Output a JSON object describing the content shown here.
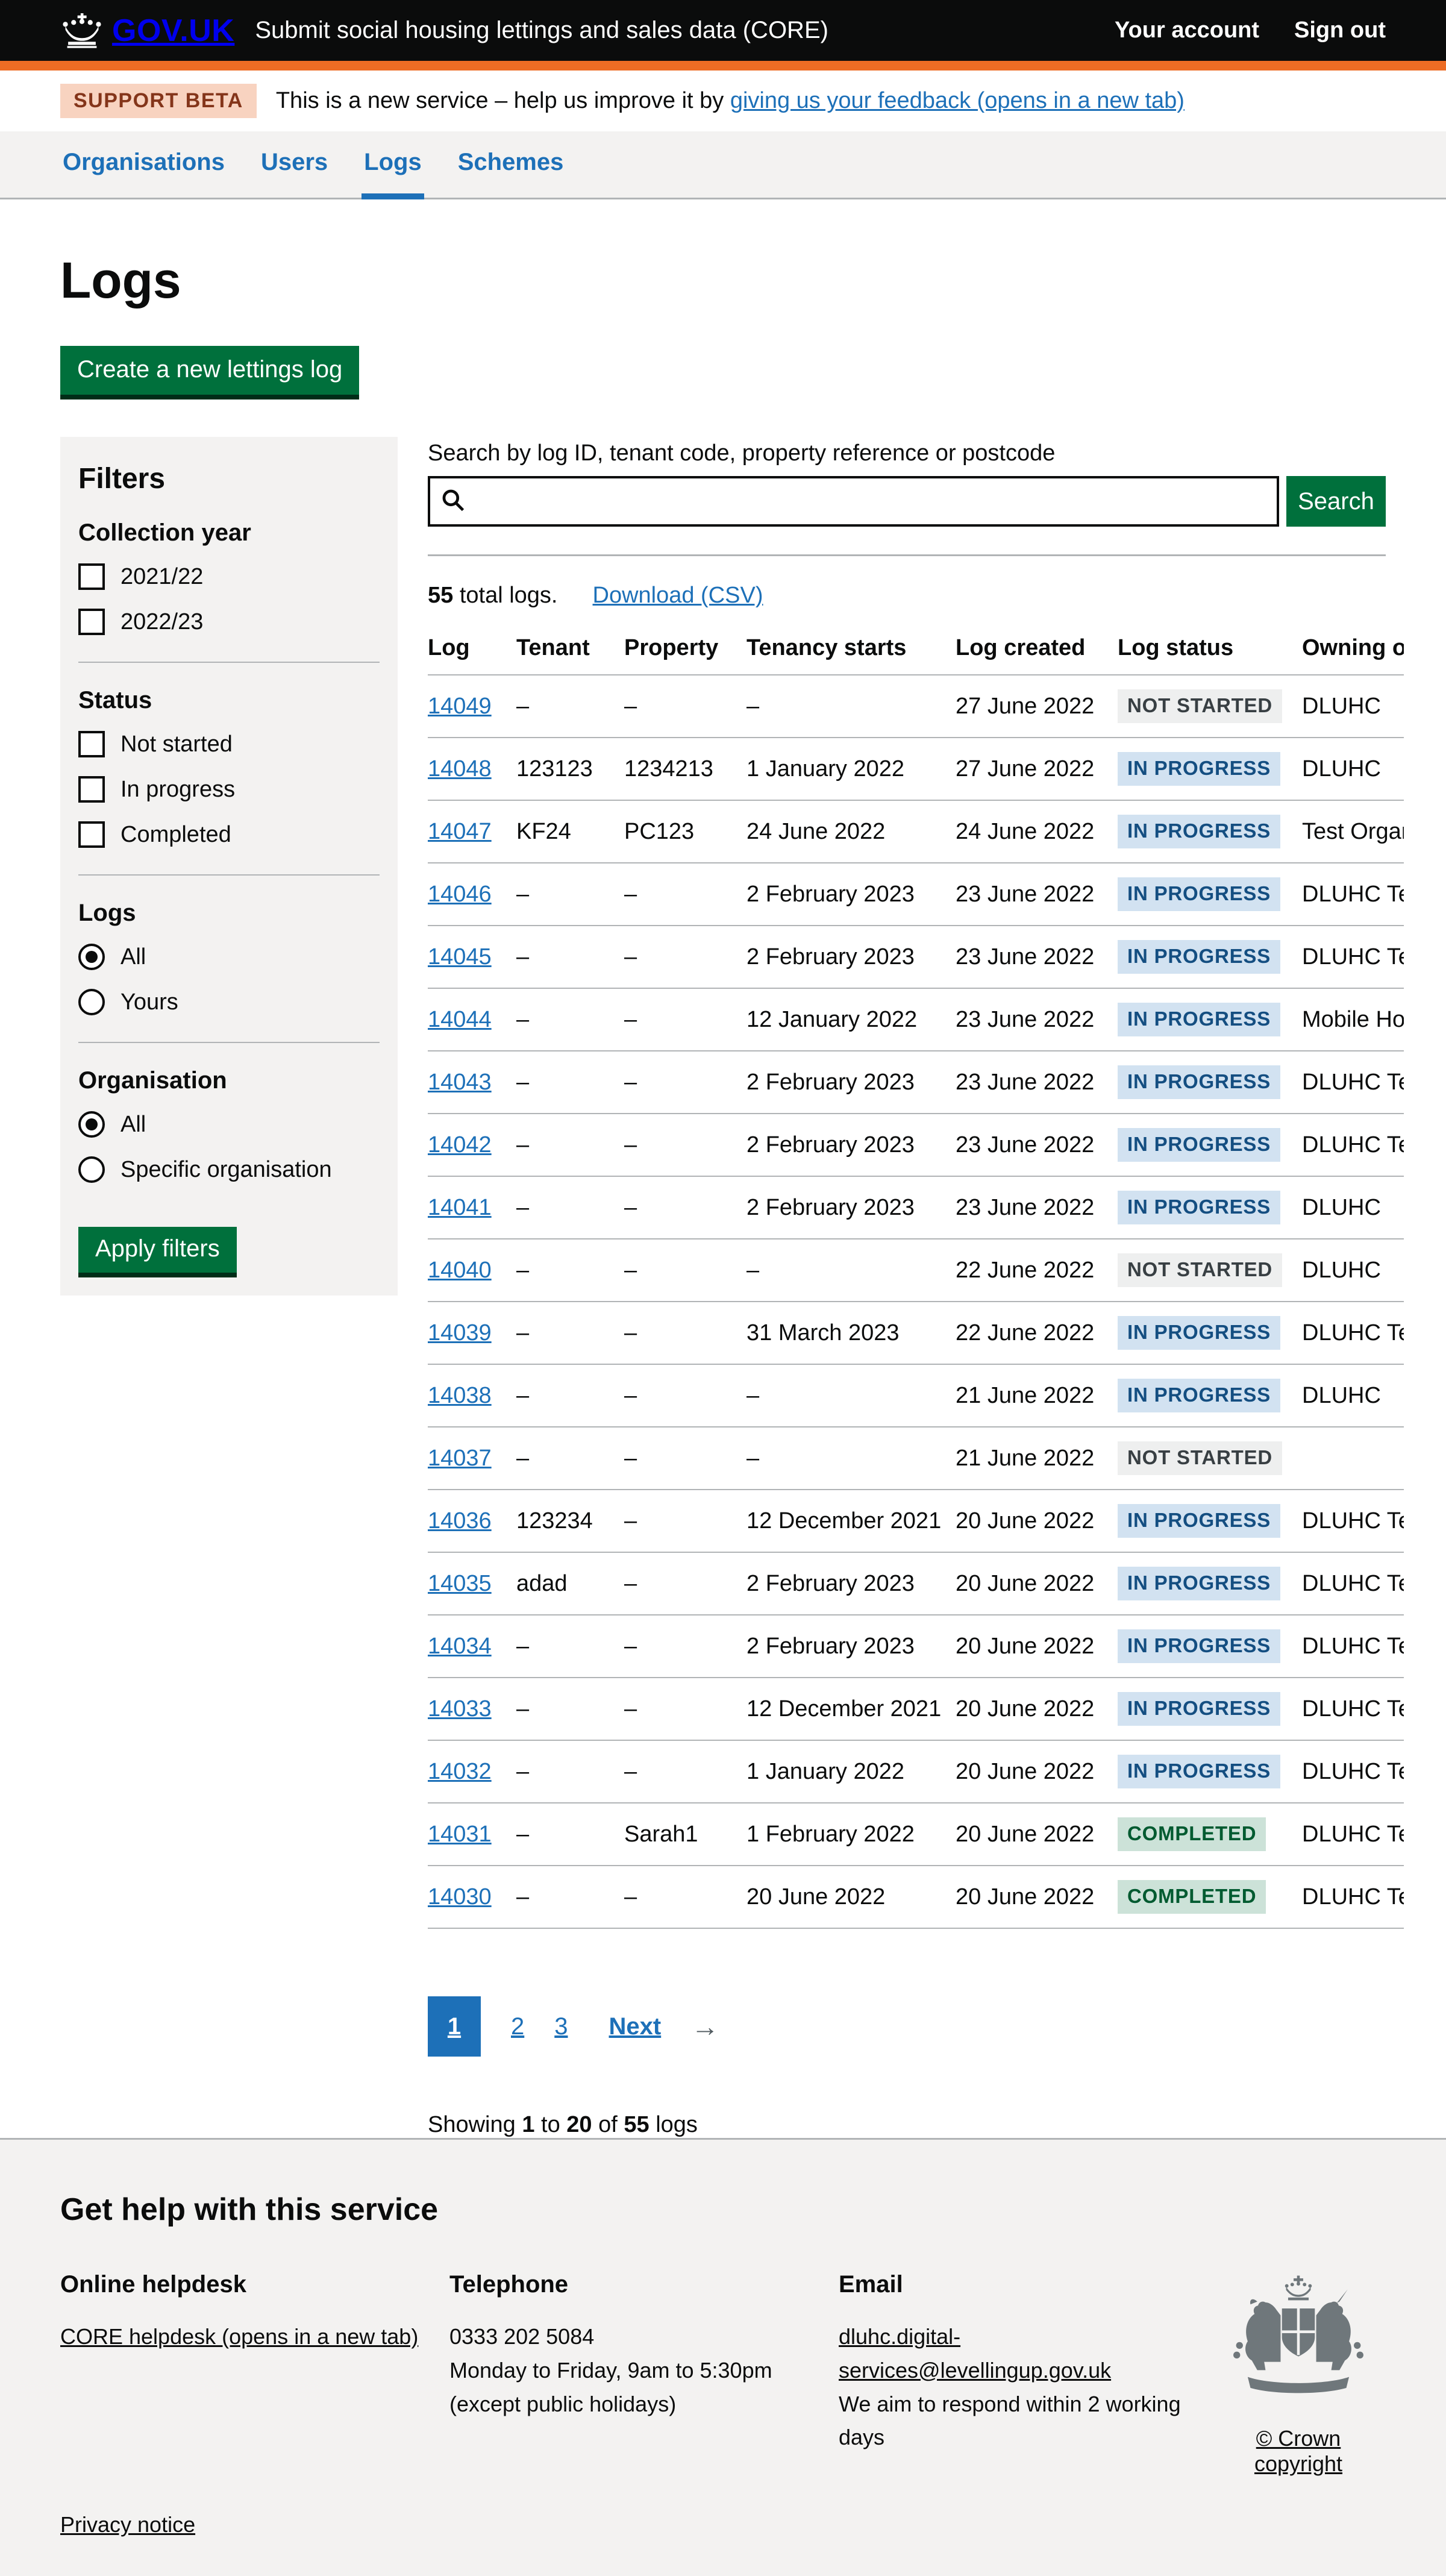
{
  "colors": {
    "accent_orange": "#ed6c24",
    "brand_black": "#0b0c0c",
    "link_blue": "#1d70b8",
    "button_green": "#00703c",
    "tag_blue_bg": "#d2e2f1",
    "tag_blue_fg": "#144e81",
    "tag_grey_bg": "#eeefef",
    "tag_grey_fg": "#383f43",
    "tag_green_bg": "#cce2d8",
    "tag_green_fg": "#005a30",
    "panel_grey": "#f3f2f1"
  },
  "header": {
    "logo": "GOV.UK",
    "service_name": "Submit social housing lettings and sales data (CORE)",
    "account_link": "Your account",
    "signout_link": "Sign out"
  },
  "phase_banner": {
    "tag": "SUPPORT BETA",
    "text_before_link": "This is a new service – help us improve it by ",
    "link_text": "giving us your feedback (opens in a new tab)"
  },
  "nav": {
    "items": [
      {
        "label": "Organisations",
        "active": false
      },
      {
        "label": "Users",
        "active": false
      },
      {
        "label": "Logs",
        "active": true
      },
      {
        "label": "Schemes",
        "active": false
      }
    ]
  },
  "page": {
    "title": "Logs",
    "create_button": "Create a new lettings log"
  },
  "filters": {
    "title": "Filters",
    "apply_button": "Apply filters",
    "groups": [
      {
        "title": "Collection year",
        "type": "checkbox",
        "options": [
          {
            "label": "2021/22",
            "checked": false
          },
          {
            "label": "2022/23",
            "checked": false
          }
        ]
      },
      {
        "title": "Status",
        "type": "checkbox",
        "options": [
          {
            "label": "Not started",
            "checked": false
          },
          {
            "label": "In progress",
            "checked": false
          },
          {
            "label": "Completed",
            "checked": false
          }
        ]
      },
      {
        "title": "Logs",
        "type": "radio",
        "options": [
          {
            "label": "All",
            "checked": true
          },
          {
            "label": "Yours",
            "checked": false
          }
        ]
      },
      {
        "title": "Organisation",
        "type": "radio",
        "options": [
          {
            "label": "All",
            "checked": true
          },
          {
            "label": "Specific organisation",
            "checked": false
          }
        ]
      }
    ]
  },
  "search": {
    "label": "Search by log ID, tenant code, property reference or postcode",
    "value": "",
    "button": "Search"
  },
  "results_summary": {
    "count": "55",
    "count_text": " total logs.",
    "download_link": "Download (CSV)"
  },
  "table": {
    "headers": [
      "Log",
      "Tenant",
      "Property",
      "Tenancy starts",
      "Log created",
      "Log status",
      "Owning organisation"
    ],
    "rows": [
      {
        "log": "14049",
        "tenant": "–",
        "property": "–",
        "tenancy_starts": "–",
        "log_created": "27 June 2022",
        "status": "NOT STARTED",
        "status_color": "grey",
        "owning": "DLUHC"
      },
      {
        "log": "14048",
        "tenant": "123123",
        "property": "1234213",
        "tenancy_starts": "1 January 2022",
        "log_created": "27 June 2022",
        "status": "IN PROGRESS",
        "status_color": "blue",
        "owning": "DLUHC"
      },
      {
        "log": "14047",
        "tenant": "KF24",
        "property": "PC123",
        "tenancy_starts": "24 June 2022",
        "log_created": "24 June 2022",
        "status": "IN PROGRESS",
        "status_color": "blue",
        "owning": "Test Organi"
      },
      {
        "log": "14046",
        "tenant": "–",
        "property": "–",
        "tenancy_starts": "2 February 2023",
        "log_created": "23 June 2022",
        "status": "IN PROGRESS",
        "status_color": "blue",
        "owning": "DLUHC Tes"
      },
      {
        "log": "14045",
        "tenant": "–",
        "property": "–",
        "tenancy_starts": "2 February 2023",
        "log_created": "23 June 2022",
        "status": "IN PROGRESS",
        "status_color": "blue",
        "owning": "DLUHC Tes"
      },
      {
        "log": "14044",
        "tenant": "–",
        "property": "–",
        "tenancy_starts": "12 January 2022",
        "log_created": "23 June 2022",
        "status": "IN PROGRESS",
        "status_color": "blue",
        "owning": "Mobile Hou"
      },
      {
        "log": "14043",
        "tenant": "–",
        "property": "–",
        "tenancy_starts": "2 February 2023",
        "log_created": "23 June 2022",
        "status": "IN PROGRESS",
        "status_color": "blue",
        "owning": "DLUHC Tes"
      },
      {
        "log": "14042",
        "tenant": "–",
        "property": "–",
        "tenancy_starts": "2 February 2023",
        "log_created": "23 June 2022",
        "status": "IN PROGRESS",
        "status_color": "blue",
        "owning": "DLUHC Tes"
      },
      {
        "log": "14041",
        "tenant": "–",
        "property": "–",
        "tenancy_starts": "2 February 2023",
        "log_created": "23 June 2022",
        "status": "IN PROGRESS",
        "status_color": "blue",
        "owning": "DLUHC"
      },
      {
        "log": "14040",
        "tenant": "–",
        "property": "–",
        "tenancy_starts": "–",
        "log_created": "22 June 2022",
        "status": "NOT STARTED",
        "status_color": "grey",
        "owning": "DLUHC"
      },
      {
        "log": "14039",
        "tenant": "–",
        "property": "–",
        "tenancy_starts": "31 March 2023",
        "log_created": "22 June 2022",
        "status": "IN PROGRESS",
        "status_color": "blue",
        "owning": "DLUHC Tes"
      },
      {
        "log": "14038",
        "tenant": "–",
        "property": "–",
        "tenancy_starts": "–",
        "log_created": "21 June 2022",
        "status": "IN PROGRESS",
        "status_color": "blue",
        "owning": "DLUHC"
      },
      {
        "log": "14037",
        "tenant": "–",
        "property": "–",
        "tenancy_starts": "–",
        "log_created": "21 June 2022",
        "status": "NOT STARTED",
        "status_color": "grey",
        "owning": ""
      },
      {
        "log": "14036",
        "tenant": "123234",
        "property": "–",
        "tenancy_starts": "12 December 2021",
        "log_created": "20 June 2022",
        "status": "IN PROGRESS",
        "status_color": "blue",
        "owning": "DLUHC Tes"
      },
      {
        "log": "14035",
        "tenant": "adad",
        "property": "–",
        "tenancy_starts": "2 February 2023",
        "log_created": "20 June 2022",
        "status": "IN PROGRESS",
        "status_color": "blue",
        "owning": "DLUHC Tes"
      },
      {
        "log": "14034",
        "tenant": "–",
        "property": "–",
        "tenancy_starts": "2 February 2023",
        "log_created": "20 June 2022",
        "status": "IN PROGRESS",
        "status_color": "blue",
        "owning": "DLUHC Tes"
      },
      {
        "log": "14033",
        "tenant": "–",
        "property": "–",
        "tenancy_starts": "12 December 2021",
        "log_created": "20 June 2022",
        "status": "IN PROGRESS",
        "status_color": "blue",
        "owning": "DLUHC Tes"
      },
      {
        "log": "14032",
        "tenant": "–",
        "property": "–",
        "tenancy_starts": "1 January 2022",
        "log_created": "20 June 2022",
        "status": "IN PROGRESS",
        "status_color": "blue",
        "owning": "DLUHC Tes"
      },
      {
        "log": "14031",
        "tenant": "–",
        "property": "Sarah1",
        "tenancy_starts": "1 February 2022",
        "log_created": "20 June 2022",
        "status": "COMPLETED",
        "status_color": "green",
        "owning": "DLUHC Tes"
      },
      {
        "log": "14030",
        "tenant": "–",
        "property": "–",
        "tenancy_starts": "20 June 2022",
        "log_created": "20 June 2022",
        "status": "COMPLETED",
        "status_color": "green",
        "owning": "DLUHC Tes"
      }
    ]
  },
  "pagination": {
    "current": "1",
    "pages": [
      "2",
      "3"
    ],
    "next_label": "Next",
    "next_arrow": "→"
  },
  "showing": {
    "prefix": "Showing ",
    "from": "1",
    "to_word": " to ",
    "to": "20",
    "of_word": " of ",
    "total": "55",
    "suffix": " logs"
  },
  "footer": {
    "title": "Get help with this service",
    "columns": [
      {
        "heading": "Online helpdesk",
        "items": [
          {
            "type": "link",
            "text": "CORE helpdesk (opens in a new tab)"
          }
        ]
      },
      {
        "heading": "Telephone",
        "items": [
          {
            "type": "text",
            "text": "0333 202 5084"
          },
          {
            "type": "text",
            "text": "Monday to Friday, 9am to 5:30pm"
          },
          {
            "type": "text",
            "text": "(except public holidays)"
          }
        ]
      },
      {
        "heading": "Email",
        "items": [
          {
            "type": "link",
            "text": "dluhc.digital-services@levellingup.gov.uk"
          },
          {
            "type": "text",
            "text": "We aim to respond within 2 working days"
          }
        ]
      }
    ],
    "privacy_link": "Privacy notice",
    "copyright_link": "© Crown copyright"
  }
}
